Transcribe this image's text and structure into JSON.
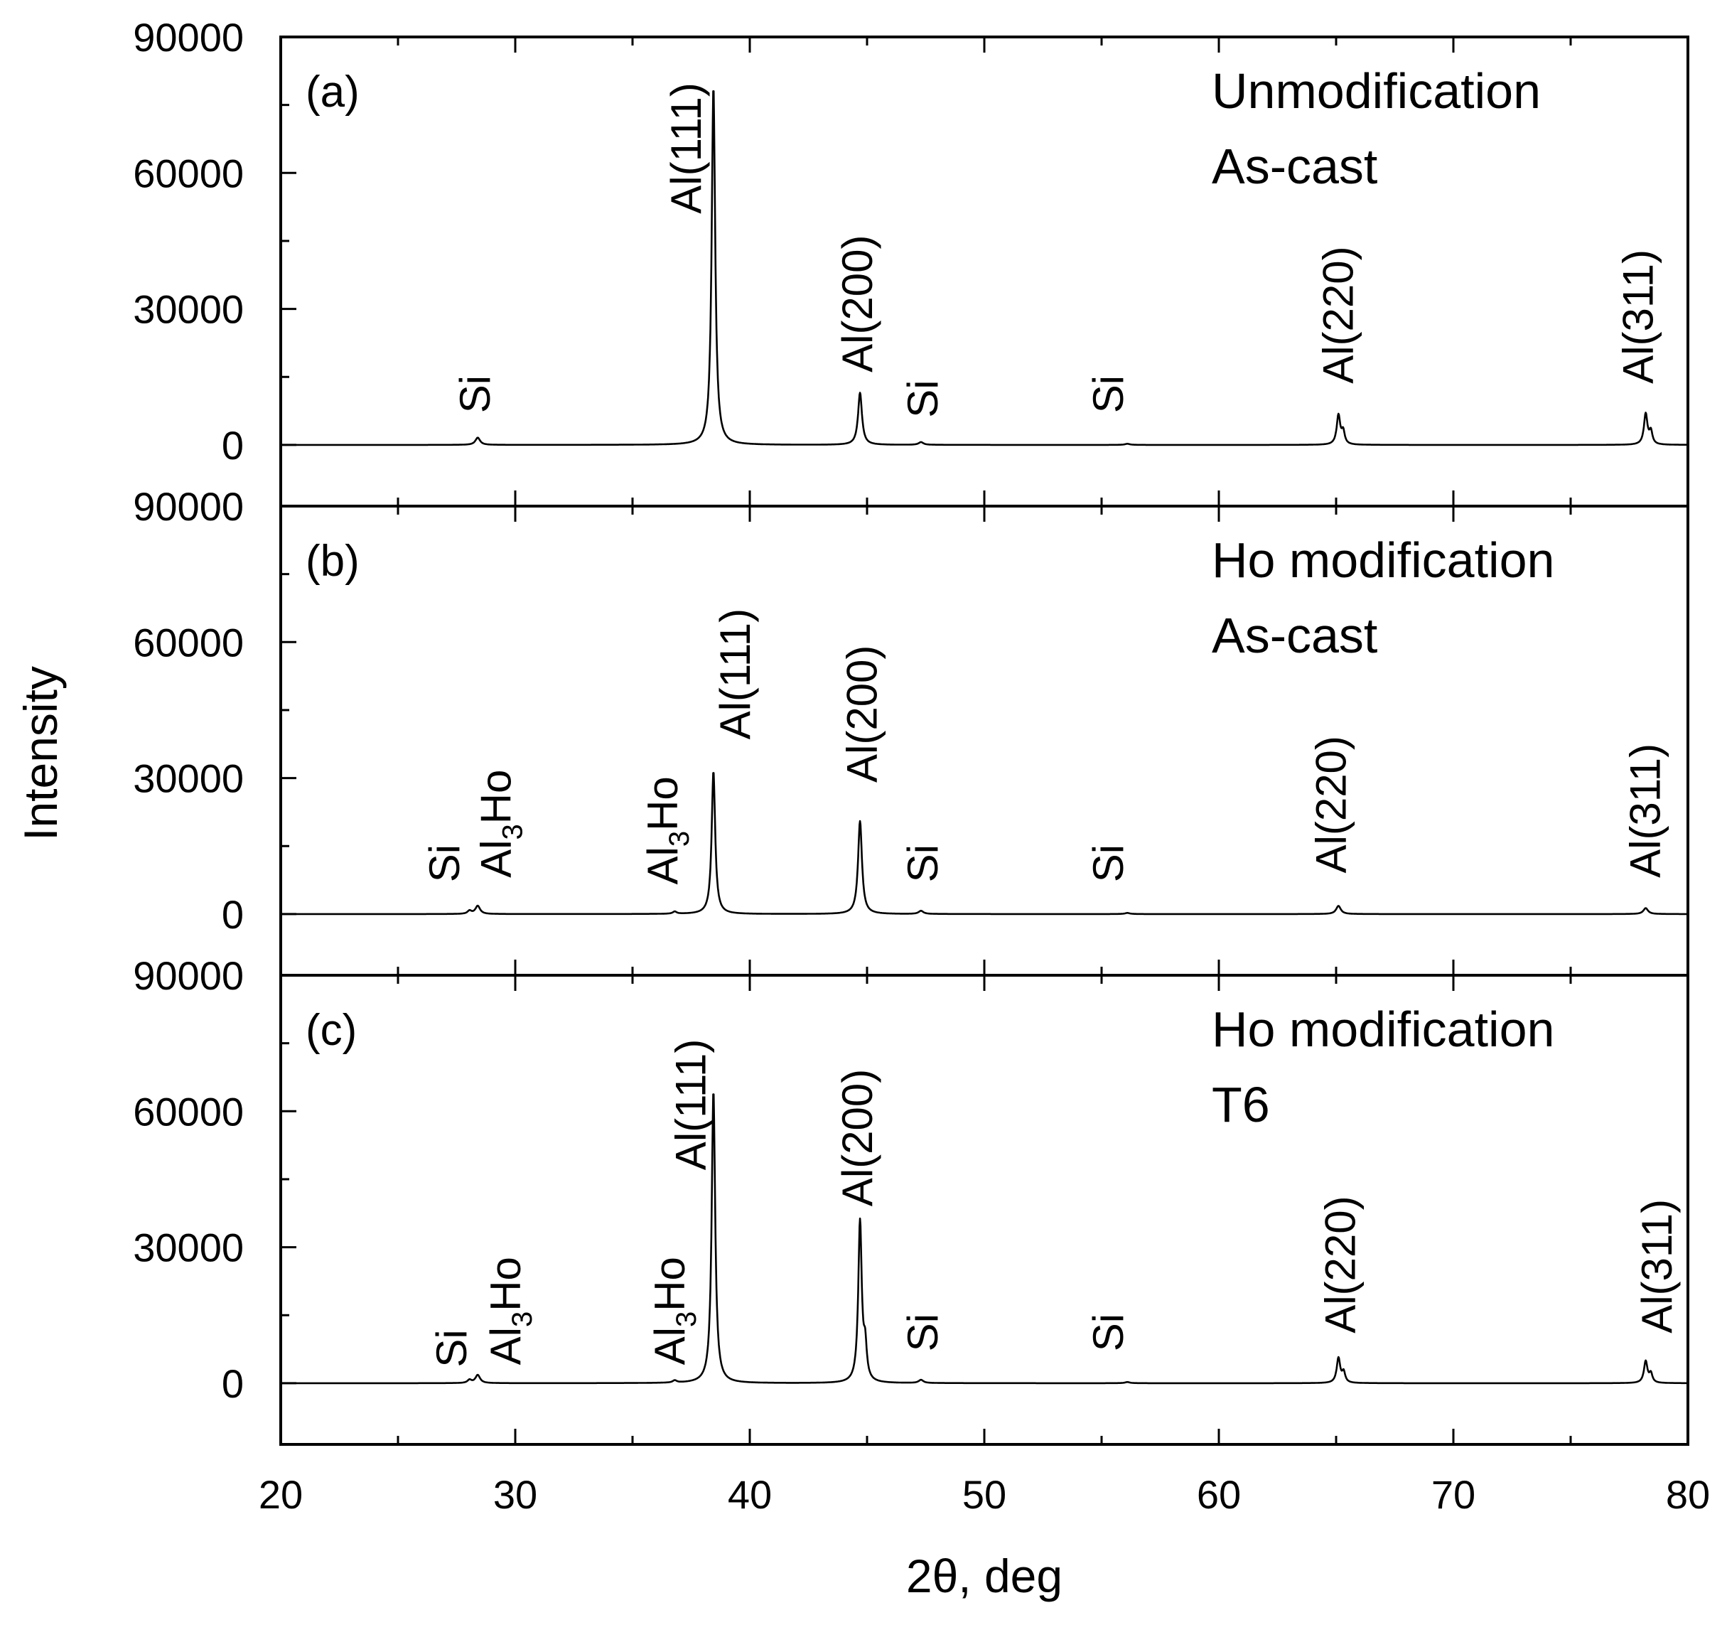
{
  "chart_data": {
    "type": "line",
    "layout": "stacked-panels",
    "xlabel": "2θ, deg",
    "ylabel": "Intensity",
    "xlim": [
      20,
      80
    ],
    "x_ticks": [
      20,
      30,
      40,
      50,
      60,
      70,
      80
    ],
    "ylim": [
      -13500,
      90000
    ],
    "y_ticks": [
      0,
      30000,
      60000,
      90000
    ],
    "line_color": "#000000",
    "panels": [
      {
        "tag": "(a)",
        "title_lines": [
          "Unmodification",
          "As-cast"
        ],
        "peaks": [
          {
            "x": 28.4,
            "y": 1600,
            "width": 0.12
          },
          {
            "x": 38.45,
            "y": 79000,
            "width": 0.09
          },
          {
            "x": 44.7,
            "y": 11500,
            "width": 0.1
          },
          {
            "x": 47.3,
            "y": 600,
            "width": 0.12
          },
          {
            "x": 56.1,
            "y": 250,
            "width": 0.12
          },
          {
            "x": 65.1,
            "y": 6500,
            "width": 0.09
          },
          {
            "x": 65.3,
            "y": 2800,
            "width": 0.08
          },
          {
            "x": 78.2,
            "y": 6800,
            "width": 0.09
          },
          {
            "x": 78.42,
            "y": 2800,
            "width": 0.08
          }
        ],
        "labels": [
          {
            "text": "Si",
            "x": 28.3,
            "y": 7000
          },
          {
            "text": "Al(111)",
            "x": 37.3,
            "y": 51000
          },
          {
            "text": "Al(200)",
            "x": 44.6,
            "y": 16000
          },
          {
            "text": "Si",
            "x": 47.4,
            "y": 6000
          },
          {
            "text": "Si",
            "x": 55.3,
            "y": 7000
          },
          {
            "text": "Al(220)",
            "x": 65.1,
            "y": 13500
          },
          {
            "text": "Al(311)",
            "x": 77.9,
            "y": 13500
          }
        ]
      },
      {
        "tag": "(b)",
        "title_lines": [
          "Ho modification",
          "As-cast"
        ],
        "peaks": [
          {
            "x": 28.05,
            "y": 700,
            "width": 0.1
          },
          {
            "x": 28.4,
            "y": 1800,
            "width": 0.12
          },
          {
            "x": 36.8,
            "y": 500,
            "width": 0.1
          },
          {
            "x": 38.45,
            "y": 31500,
            "width": 0.09
          },
          {
            "x": 44.7,
            "y": 20500,
            "width": 0.1
          },
          {
            "x": 47.3,
            "y": 700,
            "width": 0.12
          },
          {
            "x": 56.1,
            "y": 250,
            "width": 0.12
          },
          {
            "x": 65.1,
            "y": 1800,
            "width": 0.12
          },
          {
            "x": 78.2,
            "y": 1300,
            "width": 0.12
          }
        ],
        "labels": [
          {
            "text": "Si",
            "x": 27.0,
            "y": 7000
          },
          {
            "text": "Al",
            "sub": "3",
            "suffix": "Ho",
            "x": 29.2,
            "y": 8000
          },
          {
            "text": "Al",
            "sub": "3",
            "suffix": "Ho",
            "x": 36.3,
            "y": 6500
          },
          {
            "text": "Al(111)",
            "x": 39.4,
            "y": 38500
          },
          {
            "text": "Al(200)",
            "x": 44.8,
            "y": 29000
          },
          {
            "text": "Si",
            "x": 47.4,
            "y": 7000
          },
          {
            "text": "Si",
            "x": 55.3,
            "y": 7000
          },
          {
            "text": "Al(220)",
            "x": 64.8,
            "y": 9000
          },
          {
            "text": "Al(311)",
            "x": 78.2,
            "y": 8000
          }
        ]
      },
      {
        "tag": "(c)",
        "title_lines": [
          "Ho modification",
          "T6"
        ],
        "peaks": [
          {
            "x": 28.05,
            "y": 700,
            "width": 0.1
          },
          {
            "x": 28.4,
            "y": 1800,
            "width": 0.12
          },
          {
            "x": 36.8,
            "y": 500,
            "width": 0.1
          },
          {
            "x": 38.45,
            "y": 64500,
            "width": 0.09
          },
          {
            "x": 44.7,
            "y": 35500,
            "width": 0.09
          },
          {
            "x": 44.92,
            "y": 7000,
            "width": 0.08
          },
          {
            "x": 47.3,
            "y": 700,
            "width": 0.12
          },
          {
            "x": 56.1,
            "y": 250,
            "width": 0.12
          },
          {
            "x": 65.1,
            "y": 5500,
            "width": 0.09
          },
          {
            "x": 65.32,
            "y": 2300,
            "width": 0.08
          },
          {
            "x": 78.2,
            "y": 4800,
            "width": 0.09
          },
          {
            "x": 78.42,
            "y": 2000,
            "width": 0.08
          }
        ],
        "labels": [
          {
            "text": "Si",
            "x": 27.3,
            "y": 3500
          },
          {
            "text": "Al",
            "sub": "3",
            "suffix": "Ho",
            "x": 29.6,
            "y": 4000
          },
          {
            "text": "Al",
            "sub": "3",
            "suffix": "Ho",
            "x": 36.6,
            "y": 4000
          },
          {
            "text": "Al(111)",
            "x": 37.5,
            "y": 47000
          },
          {
            "text": "Al(200)",
            "x": 44.6,
            "y": 39000
          },
          {
            "text": "Si",
            "x": 47.4,
            "y": 7000
          },
          {
            "text": "Si",
            "x": 55.3,
            "y": 7000
          },
          {
            "text": "Al(220)",
            "x": 65.2,
            "y": 11000
          },
          {
            "text": "Al(311)",
            "x": 78.7,
            "y": 11000
          }
        ]
      }
    ]
  }
}
